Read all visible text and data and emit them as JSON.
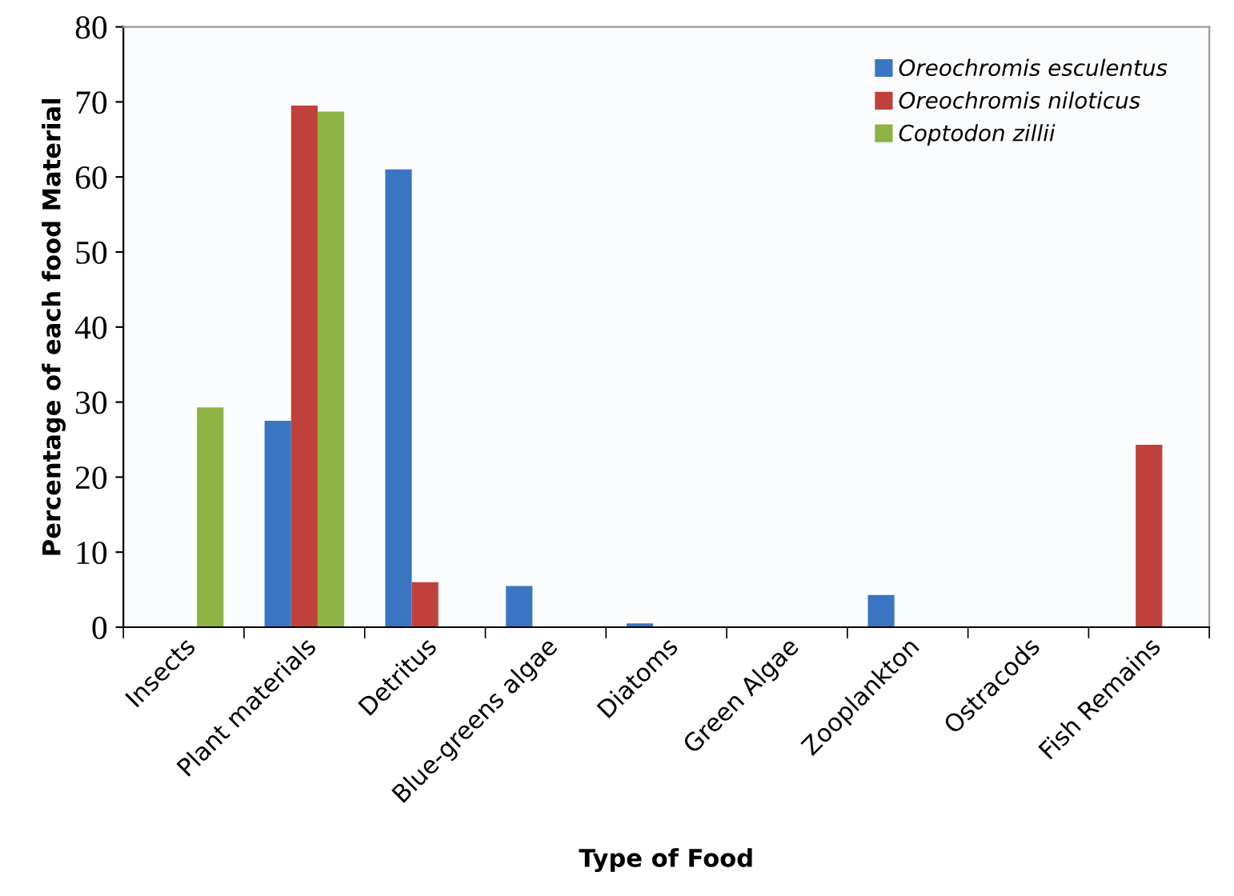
{
  "chart_data": {
    "type": "bar",
    "xlabel": "Type of Food",
    "ylabel": "Percentage of each food Material",
    "categories": [
      "Insects",
      "Plant materials",
      "Detritus",
      "Blue-greens algae",
      "Diatoms",
      "Green Algae",
      "Zooplankton",
      "Ostracods",
      "Fish Remains"
    ],
    "series": [
      {
        "name": "Oreochromis esculentus",
        "color": "#3a75c4",
        "values": [
          0,
          27.5,
          61,
          5.5,
          0.5,
          null,
          4.3,
          null,
          0
        ]
      },
      {
        "name": "Oreochromis niloticus",
        "color": "#c0413b",
        "values": [
          0,
          69.5,
          6,
          0,
          0,
          0,
          0,
          0,
          24.3
        ]
      },
      {
        "name": "Coptodon zillii",
        "color": "#8db444",
        "values": [
          29.3,
          68.7,
          0,
          0,
          0,
          0,
          0,
          0,
          0
        ]
      }
    ],
    "ylim": [
      0,
      80
    ],
    "yticks": [
      0,
      10,
      20,
      30,
      40,
      50,
      60,
      70,
      80
    ],
    "grid": false,
    "legend": "top right"
  }
}
